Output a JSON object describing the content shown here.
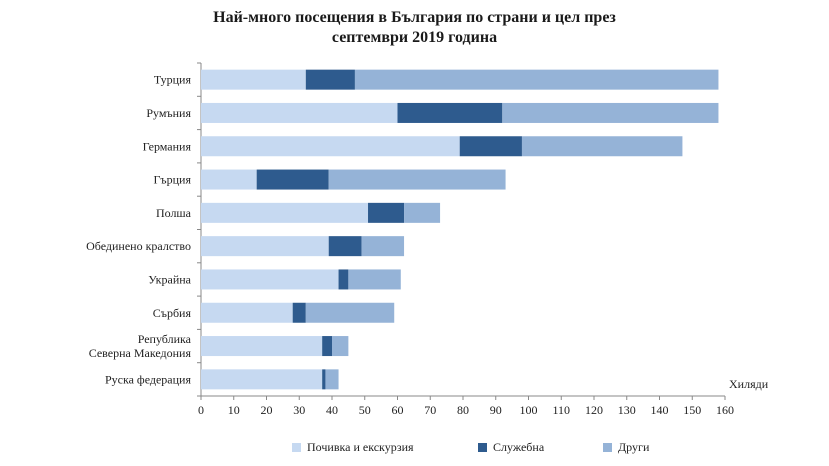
{
  "chart_data": {
    "type": "bar",
    "orientation": "horizontal",
    "stacked": true,
    "title_line1": "Най-много посещения в България по страни и цел през",
    "title_line2": "септември 2019 година",
    "unit_label": "Хиляди",
    "categories": [
      "Турция",
      "Румъния",
      "Германия",
      "Гърция",
      "Полша",
      "Обединено кралство",
      "Украйна",
      "Сърбия",
      "Република\nСеверна Македония",
      "Руска федерация"
    ],
    "category_lines": [
      [
        "Турция"
      ],
      [
        "Румъния"
      ],
      [
        "Германия"
      ],
      [
        "Гърция"
      ],
      [
        "Полша"
      ],
      [
        "Обединено кралство"
      ],
      [
        "Украйна"
      ],
      [
        "Сърбия"
      ],
      [
        "Република",
        "Северна Македония"
      ],
      [
        "Руска федерация"
      ]
    ],
    "series": [
      {
        "name": "Почивка и екскурзия",
        "color": "#c6d9f1",
        "values": [
          32,
          60,
          79,
          17,
          51,
          39,
          42,
          28,
          37,
          37
        ]
      },
      {
        "name": "Служебна",
        "color": "#2e5b8e",
        "values": [
          15,
          32,
          19,
          22,
          11,
          10,
          3,
          4,
          3,
          1
        ]
      },
      {
        "name": "Други",
        "color": "#95b3d7",
        "values": [
          111,
          66,
          49,
          54,
          11,
          13,
          16,
          27,
          5,
          4
        ]
      }
    ],
    "xlim": [
      0,
      160
    ],
    "xticks": [
      0,
      10,
      20,
      30,
      40,
      50,
      60,
      70,
      80,
      90,
      100,
      110,
      120,
      130,
      140,
      150,
      160
    ],
    "legend_position": "bottom"
  }
}
